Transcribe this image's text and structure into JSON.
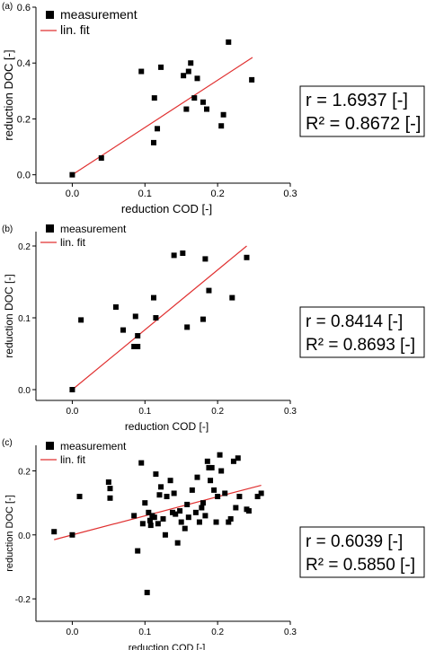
{
  "colors": {
    "marker": "#000000",
    "fit_line": "#e03030",
    "axis": "#000000",
    "stats_border": "#000000"
  },
  "chart_data": [
    {
      "panel_label": "(a)",
      "type": "scatter",
      "xlabel": "reduction COD [-]",
      "ylabel": "reduction DOC [-]",
      "xlim": [
        -0.05,
        0.3
      ],
      "ylim": [
        -0.03,
        0.6
      ],
      "xticks": [
        0.0,
        0.1,
        0.2,
        0.3
      ],
      "xtick_labels": [
        "0.0",
        "0.1",
        "0.2",
        "0.3"
      ],
      "yticks": [
        0.0,
        0.2,
        0.4,
        0.6
      ],
      "ytick_labels": [
        "0.0",
        "0.2",
        "0.4",
        "0.6"
      ],
      "grid": false,
      "legend": {
        "position": "top-left",
        "marker_label": "measurement",
        "line_label": "lin. fit"
      },
      "series": [
        {
          "name": "measurement",
          "points": [
            [
              0.0,
              0.0
            ],
            [
              0.04,
              0.06
            ],
            [
              0.095,
              0.37
            ],
            [
              0.112,
              0.115
            ],
            [
              0.113,
              0.275
            ],
            [
              0.117,
              0.165
            ],
            [
              0.122,
              0.385
            ],
            [
              0.153,
              0.355
            ],
            [
              0.157,
              0.235
            ],
            [
              0.16,
              0.37
            ],
            [
              0.163,
              0.4
            ],
            [
              0.168,
              0.275
            ],
            [
              0.172,
              0.345
            ],
            [
              0.18,
              0.26
            ],
            [
              0.185,
              0.235
            ],
            [
              0.205,
              0.175
            ],
            [
              0.208,
              0.215
            ],
            [
              0.215,
              0.475
            ],
            [
              0.247,
              0.34
            ]
          ]
        },
        {
          "name": "lin. fit",
          "points": [
            [
              0.0,
              0.0
            ],
            [
              0.248,
              0.42
            ]
          ]
        }
      ],
      "stats": [
        "r = 1.6937 [-]",
        "R² = 0.8672 [-]"
      ]
    },
    {
      "panel_label": "(b)",
      "type": "scatter",
      "xlabel": "reduction COD [-]",
      "ylabel": "reduction DOC [-]",
      "xlim": [
        -0.05,
        0.3
      ],
      "ylim": [
        -0.015,
        0.22
      ],
      "xticks": [
        0.0,
        0.1,
        0.2,
        0.3
      ],
      "xtick_labels": [
        "0.0",
        "0.1",
        "0.2",
        "0.3"
      ],
      "yticks": [
        0.0,
        0.1,
        0.2
      ],
      "ytick_labels": [
        "0.0",
        "0.1",
        "0.2"
      ],
      "grid": false,
      "legend": {
        "position": "top-left",
        "marker_label": "measurement",
        "line_label": "lin. fit"
      },
      "series": [
        {
          "name": "measurement",
          "points": [
            [
              0.0,
              0.0
            ],
            [
              0.012,
              0.097
            ],
            [
              0.06,
              0.115
            ],
            [
              0.07,
              0.083
            ],
            [
              0.085,
              0.06
            ],
            [
              0.087,
              0.102
            ],
            [
              0.09,
              0.06
            ],
            [
              0.09,
              0.075
            ],
            [
              0.112,
              0.128
            ],
            [
              0.115,
              0.1
            ],
            [
              0.14,
              0.187
            ],
            [
              0.152,
              0.19
            ],
            [
              0.158,
              0.087
            ],
            [
              0.18,
              0.098
            ],
            [
              0.183,
              0.182
            ],
            [
              0.188,
              0.138
            ],
            [
              0.22,
              0.128
            ],
            [
              0.24,
              0.184
            ]
          ]
        },
        {
          "name": "lin. fit",
          "points": [
            [
              0.0,
              0.0
            ],
            [
              0.24,
              0.2
            ]
          ]
        }
      ],
      "stats": [
        "r = 0.8414 [-]",
        "R² = 0.8693 [-]"
      ]
    },
    {
      "panel_label": "(c)",
      "type": "scatter",
      "xlabel": "reduction COD [-]",
      "ylabel": "reduction DOC [-]",
      "xlim": [
        -0.05,
        0.3
      ],
      "ylim": [
        -0.27,
        0.28
      ],
      "xticks": [
        0.0,
        0.1,
        0.2,
        0.3
      ],
      "xtick_labels": [
        "0.0",
        "0.1",
        "0.2",
        "0.3"
      ],
      "yticks": [
        -0.2,
        0.0,
        0.2
      ],
      "ytick_labels": [
        "-0.2",
        "0.0",
        "0.2"
      ],
      "grid": false,
      "legend": {
        "position": "top-left",
        "marker_label": "measurement",
        "line_label": "lin. fit"
      },
      "series": [
        {
          "name": "measurement",
          "points": [
            [
              -0.025,
              0.01
            ],
            [
              0.0,
              0.0
            ],
            [
              0.01,
              0.12
            ],
            [
              0.05,
              0.165
            ],
            [
              0.052,
              0.145
            ],
            [
              0.052,
              0.115
            ],
            [
              0.085,
              0.06
            ],
            [
              0.09,
              -0.05
            ],
            [
              0.095,
              0.225
            ],
            [
              0.097,
              0.035
            ],
            [
              0.1,
              0.1
            ],
            [
              0.103,
              -0.18
            ],
            [
              0.105,
              0.07
            ],
            [
              0.107,
              0.045
            ],
            [
              0.108,
              0.03
            ],
            [
              0.11,
              0.06
            ],
            [
              0.113,
              0.055
            ],
            [
              0.115,
              0.19
            ],
            [
              0.118,
              0.035
            ],
            [
              0.12,
              0.125
            ],
            [
              0.122,
              0.15
            ],
            [
              0.125,
              0.05
            ],
            [
              0.128,
              0.0
            ],
            [
              0.13,
              0.12
            ],
            [
              0.135,
              0.17
            ],
            [
              0.138,
              0.07
            ],
            [
              0.14,
              0.13
            ],
            [
              0.142,
              0.065
            ],
            [
              0.145,
              -0.025
            ],
            [
              0.148,
              0.075
            ],
            [
              0.15,
              0.04
            ],
            [
              0.155,
              0.02
            ],
            [
              0.158,
              0.095
            ],
            [
              0.16,
              0.055
            ],
            [
              0.165,
              0.14
            ],
            [
              0.17,
              0.07
            ],
            [
              0.172,
              0.18
            ],
            [
              0.175,
              0.04
            ],
            [
              0.178,
              0.085
            ],
            [
              0.18,
              0.1
            ],
            [
              0.183,
              0.06
            ],
            [
              0.186,
              0.23
            ],
            [
              0.188,
              0.21
            ],
            [
              0.19,
              0.17
            ],
            [
              0.192,
              0.21
            ],
            [
              0.195,
              0.14
            ],
            [
              0.198,
              0.04
            ],
            [
              0.2,
              0.12
            ],
            [
              0.203,
              0.25
            ],
            [
              0.205,
              0.2
            ],
            [
              0.21,
              0.13
            ],
            [
              0.215,
              0.04
            ],
            [
              0.218,
              0.05
            ],
            [
              0.222,
              0.23
            ],
            [
              0.225,
              0.085
            ],
            [
              0.228,
              0.24
            ],
            [
              0.23,
              0.12
            ],
            [
              0.24,
              0.08
            ],
            [
              0.243,
              0.075
            ],
            [
              0.255,
              0.12
            ],
            [
              0.26,
              0.13
            ]
          ]
        },
        {
          "name": "lin. fit",
          "points": [
            [
              -0.025,
              -0.015
            ],
            [
              0.26,
              0.155
            ]
          ]
        }
      ],
      "stats": [
        "r = 0.6039 [-]",
        "R² = 0.5850 [-]"
      ]
    }
  ]
}
